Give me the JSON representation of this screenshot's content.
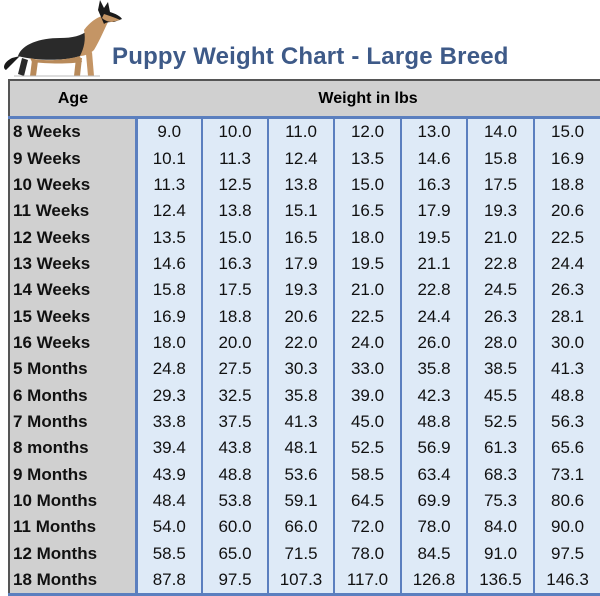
{
  "title": "Puppy Weight Chart - Large Breed",
  "header": {
    "age": "Age",
    "weight": "Weight in lbs"
  },
  "rows": [
    {
      "age": "8 Weeks",
      "values": [
        "9.0",
        "10.0",
        "11.0",
        "12.0",
        "13.0",
        "14.0",
        "15.0"
      ]
    },
    {
      "age": "9 Weeks",
      "values": [
        "10.1",
        "11.3",
        "12.4",
        "13.5",
        "14.6",
        "15.8",
        "16.9"
      ]
    },
    {
      "age": "10 Weeks",
      "values": [
        "11.3",
        "12.5",
        "13.8",
        "15.0",
        "16.3",
        "17.5",
        "18.8"
      ]
    },
    {
      "age": "11 Weeks",
      "values": [
        "12.4",
        "13.8",
        "15.1",
        "16.5",
        "17.9",
        "19.3",
        "20.6"
      ]
    },
    {
      "age": "12 Weeks",
      "values": [
        "13.5",
        "15.0",
        "16.5",
        "18.0",
        "19.5",
        "21.0",
        "22.5"
      ]
    },
    {
      "age": "13 Weeks",
      "values": [
        "14.6",
        "16.3",
        "17.9",
        "19.5",
        "21.1",
        "22.8",
        "24.4"
      ]
    },
    {
      "age": "14 Weeks",
      "values": [
        "15.8",
        "17.5",
        "19.3",
        "21.0",
        "22.8",
        "24.5",
        "26.3"
      ]
    },
    {
      "age": "15 Weeks",
      "values": [
        "16.9",
        "18.8",
        "20.6",
        "22.5",
        "24.4",
        "26.3",
        "28.1"
      ]
    },
    {
      "age": "16 Weeks",
      "values": [
        "18.0",
        "20.0",
        "22.0",
        "24.0",
        "26.0",
        "28.0",
        "30.0"
      ]
    },
    {
      "age": "5 Months",
      "values": [
        "24.8",
        "27.5",
        "30.3",
        "33.0",
        "35.8",
        "38.5",
        "41.3"
      ]
    },
    {
      "age": "6 Months",
      "values": [
        "29.3",
        "32.5",
        "35.8",
        "39.0",
        "42.3",
        "45.5",
        "48.8"
      ]
    },
    {
      "age": "7 Months",
      "values": [
        "33.8",
        "37.5",
        "41.3",
        "45.0",
        "48.8",
        "52.5",
        "56.3"
      ]
    },
    {
      "age": "8 months",
      "values": [
        "39.4",
        "43.8",
        "48.1",
        "52.5",
        "56.9",
        "61.3",
        "65.6"
      ]
    },
    {
      "age": "9 Months",
      "values": [
        "43.9",
        "48.8",
        "53.6",
        "58.5",
        "63.4",
        "68.3",
        "73.1"
      ]
    },
    {
      "age": "10 Months",
      "values": [
        "48.4",
        "53.8",
        "59.1",
        "64.5",
        "69.9",
        "75.3",
        "80.6"
      ]
    },
    {
      "age": "11 Months",
      "values": [
        "54.0",
        "60.0",
        "66.0",
        "72.0",
        "78.0",
        "84.0",
        "90.0"
      ]
    },
    {
      "age": "12 Months",
      "values": [
        "58.5",
        "65.0",
        "71.5",
        "78.0",
        "84.5",
        "91.0",
        "97.5"
      ]
    },
    {
      "age": "18 Months",
      "values": [
        "87.8",
        "97.5",
        "107.3",
        "117.0",
        "126.8",
        "136.5",
        "146.3"
      ]
    }
  ],
  "colors": {
    "title": "#3e5a88",
    "cell_bg": "#deeaf7",
    "age_bg": "#d0d0d0",
    "grid": "#5b7fbf"
  }
}
